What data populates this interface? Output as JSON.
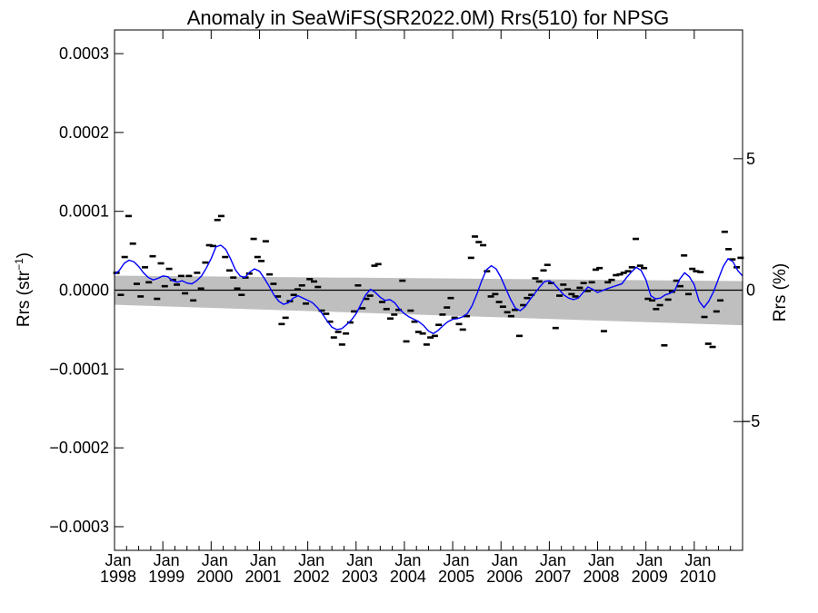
{
  "chart_data": {
    "type": "scatter",
    "title": "Anomaly in SeaWiFS(SR2022.0M) Rrs(510) for NPSG",
    "ylabel": "Rrs (str",
    "ylabel_sup": "−1",
    "ylabel_close": ")",
    "y2label": "Rrs (%)",
    "xlim": [
      1998.0,
      2011.0
    ],
    "ylim": [
      -0.00033,
      0.00033
    ],
    "y2lim": [
      -9.9,
      9.9
    ],
    "y_ticks": [
      {
        "value": 0.0003,
        "label": "0.0003"
      },
      {
        "value": 0.0002,
        "label": "0.0002"
      },
      {
        "value": 0.0001,
        "label": "0.0001"
      },
      {
        "value": 0.0,
        "label": "0.0000"
      },
      {
        "value": -0.0001,
        "label": "−0.0001"
      },
      {
        "value": -0.0002,
        "label": "−0.0002"
      },
      {
        "value": -0.0003,
        "label": "−0.0003"
      }
    ],
    "y2_ticks": [
      {
        "value": 5,
        "label": "5"
      },
      {
        "value": 0,
        "label": "0"
      },
      {
        "value": -5,
        "label": "−5"
      }
    ],
    "x_ticks": [
      {
        "value": 1998,
        "month": "Jan",
        "year": "1998"
      },
      {
        "value": 1999,
        "month": "Jan",
        "year": "1999"
      },
      {
        "value": 2000,
        "month": "Jan",
        "year": "2000"
      },
      {
        "value": 2001,
        "month": "Jan",
        "year": "2001"
      },
      {
        "value": 2002,
        "month": "Jan",
        "year": "2002"
      },
      {
        "value": 2003,
        "month": "Jan",
        "year": "2003"
      },
      {
        "value": 2004,
        "month": "Jan",
        "year": "2004"
      },
      {
        "value": 2005,
        "month": "Jan",
        "year": "2005"
      },
      {
        "value": 2006,
        "month": "Jan",
        "year": "2006"
      },
      {
        "value": 2007,
        "month": "Jan",
        "year": "2007"
      },
      {
        "value": 2008,
        "month": "Jan",
        "year": "2008"
      },
      {
        "value": 2009,
        "month": "Jan",
        "year": "2009"
      },
      {
        "value": 2010,
        "month": "Jan",
        "year": "2010"
      }
    ],
    "grid": false,
    "zero_line": true,
    "colors": {
      "points": "#000000",
      "smooth_line": "#0000ff",
      "band": "#bfbfbf",
      "zero_line": "#000000"
    },
    "band": {
      "x": [
        1998.0,
        2011.0
      ],
      "upper": [
        1.85e-05,
        1.15e-05
      ],
      "lower": [
        -1.85e-05,
        -4.45e-05
      ]
    },
    "monthly_points": {
      "x": [
        1998.04,
        1998.13,
        1998.21,
        1998.29,
        1998.38,
        1998.46,
        1998.54,
        1998.63,
        1998.71,
        1998.79,
        1998.88,
        1998.96,
        1999.04,
        1999.13,
        1999.21,
        1999.29,
        1999.38,
        1999.46,
        1999.54,
        1999.63,
        1999.71,
        1999.79,
        1999.88,
        1999.96,
        2000.04,
        2000.13,
        2000.21,
        2000.29,
        2000.38,
        2000.46,
        2000.54,
        2000.63,
        2000.71,
        2000.79,
        2000.88,
        2000.96,
        2001.04,
        2001.13,
        2001.21,
        2001.29,
        2001.38,
        2001.46,
        2001.54,
        2001.63,
        2001.71,
        2001.79,
        2001.88,
        2001.96,
        2002.04,
        2002.13,
        2002.21,
        2002.29,
        2002.38,
        2002.46,
        2002.54,
        2002.63,
        2002.71,
        2002.79,
        2002.88,
        2002.96,
        2003.04,
        2003.13,
        2003.21,
        2003.29,
        2003.38,
        2003.46,
        2003.54,
        2003.63,
        2003.71,
        2003.79,
        2003.88,
        2003.96,
        2004.04,
        2004.13,
        2004.21,
        2004.29,
        2004.38,
        2004.46,
        2004.54,
        2004.63,
        2004.71,
        2004.79,
        2004.88,
        2004.96,
        2005.04,
        2005.13,
        2005.21,
        2005.29,
        2005.38,
        2005.46,
        2005.54,
        2005.63,
        2005.71,
        2005.79,
        2005.88,
        2005.96,
        2006.04,
        2006.13,
        2006.21,
        2006.29,
        2006.38,
        2006.46,
        2006.54,
        2006.63,
        2006.71,
        2006.79,
        2006.88,
        2006.96,
        2007.04,
        2007.13,
        2007.21,
        2007.29,
        2007.38,
        2007.46,
        2007.54,
        2007.63,
        2007.71,
        2007.79,
        2007.88,
        2007.96,
        2008.04,
        2008.13,
        2008.21,
        2008.29,
        2008.38,
        2008.46,
        2008.54,
        2008.63,
        2008.71,
        2008.79,
        2008.88,
        2008.96,
        2009.04,
        2009.13,
        2009.21,
        2009.29,
        2009.38,
        2009.46,
        2009.54,
        2009.63,
        2009.71,
        2009.79,
        2009.88,
        2009.96,
        2010.04,
        2010.13,
        2010.21,
        2010.29,
        2010.38,
        2010.46,
        2010.54,
        2010.63,
        2010.71,
        2010.79,
        2010.88,
        2010.96
      ],
      "y": [
        2.2e-05,
        -6e-06,
        4.2e-05,
        9.4e-05,
        5.9e-05,
        8e-06,
        -8e-06,
        2.9e-05,
        1e-05,
        4.3e-05,
        -1.1e-05,
        3.4e-05,
        5e-06,
        2.7e-05,
        1.3e-05,
        7e-06,
        1.8e-05,
        -4e-06,
        1.8e-05,
        -1.3e-05,
        2.2e-05,
        2e-06,
        3.5e-05,
        5.7e-05,
        5.6e-05,
        8.9e-05,
        9.4e-05,
        4.2e-05,
        2.5e-05,
        1.6e-05,
        2e-06,
        -6e-06,
        1.6e-05,
        2.1e-05,
        6.5e-05,
        4.2e-05,
        3.7e-05,
        6.2e-05,
        2e-05,
        8e-06,
        -8e-06,
        -4.3e-05,
        -3.5e-05,
        -1.4e-05,
        -6e-06,
        1e-06,
        6e-06,
        -1.7e-05,
        1.4e-05,
        1.1e-05,
        4e-06,
        -2.6e-05,
        -3e-05,
        -4e-05,
        -6e-05,
        -5.3e-05,
        -6.9e-05,
        -5.5e-05,
        -4.1e-05,
        -2.7e-05,
        6e-06,
        -2.3e-05,
        -1.1e-05,
        -7e-06,
        3.1e-05,
        3.3e-05,
        -1.5e-05,
        -2.4e-05,
        -3.6e-05,
        -3.1e-05,
        -2.5e-05,
        1.2e-05,
        -6.5e-05,
        -2.6e-05,
        -4e-05,
        -5.3e-05,
        -5.5e-05,
        -6.9e-05,
        -6e-05,
        -5.8e-05,
        -4.4e-05,
        -3.1e-05,
        -2.2e-05,
        -1e-05,
        -3.5e-05,
        -4.3e-05,
        -5e-05,
        -3.3e-05,
        4.1e-05,
        6.8e-05,
        6.1e-05,
        5.7e-05,
        2.4e-05,
        -8e-06,
        -5e-06,
        -1.5e-05,
        -2.1e-05,
        -2.8e-05,
        -3.3e-05,
        -2.5e-05,
        -5.8e-05,
        -1.9e-05,
        -1e-05,
        -6e-06,
        1.5e-05,
        1.1e-05,
        2.5e-05,
        3.2e-05,
        9e-06,
        -4.8e-05,
        -7e-06,
        7e-06,
        1e-06,
        -5e-06,
        -8e-06,
        3e-06,
        9e-06,
        -1e-06,
        1e-05,
        2.6e-05,
        2.8e-05,
        -5.2e-05,
        1e-05,
        1.3e-05,
        1.9e-05,
        2e-05,
        2.2e-05,
        2.4e-05,
        2.9e-05,
        6.5e-05,
        3.1e-05,
        2.8e-05,
        -1.1e-05,
        -1.3e-05,
        -2.4e-05,
        -1.9e-05,
        -7e-05,
        -1.2e-05,
        -2e-06,
        1.2e-05,
        5e-06,
        4.4e-05,
        -5e-06,
        2.7e-05,
        2.4e-05,
        2.3e-05,
        -3.4e-05,
        -6.8e-05,
        -7.2e-05,
        -2.7e-05,
        -1.3e-05,
        7.4e-05,
        5.2e-05,
        3.9e-05,
        2.9e-05,
        4.1e-05
      ]
    },
    "smooth_line": {
      "x": [
        1998.0,
        1998.1,
        1998.2,
        1998.3,
        1998.4,
        1998.5,
        1998.6,
        1998.7,
        1998.8,
        1998.9,
        1999.0,
        1999.1,
        1999.2,
        1999.3,
        1999.4,
        1999.5,
        1999.6,
        1999.7,
        1999.8,
        1999.9,
        2000.0,
        2000.1,
        2000.2,
        2000.3,
        2000.4,
        2000.5,
        2000.6,
        2000.7,
        2000.8,
        2000.9,
        2001.0,
        2001.1,
        2001.2,
        2001.3,
        2001.4,
        2001.5,
        2001.6,
        2001.7,
        2001.8,
        2001.9,
        2002.0,
        2002.1,
        2002.2,
        2002.3,
        2002.4,
        2002.5,
        2002.6,
        2002.7,
        2002.8,
        2002.9,
        2003.0,
        2003.1,
        2003.2,
        2003.3,
        2003.4,
        2003.5,
        2003.6,
        2003.7,
        2003.8,
        2003.9,
        2004.0,
        2004.1,
        2004.2,
        2004.3,
        2004.4,
        2004.5,
        2004.6,
        2004.7,
        2004.8,
        2004.9,
        2005.0,
        2005.1,
        2005.2,
        2005.3,
        2005.4,
        2005.5,
        2005.6,
        2005.7,
        2005.8,
        2005.9,
        2006.0,
        2006.1,
        2006.2,
        2006.3,
        2006.4,
        2006.5,
        2006.6,
        2006.7,
        2006.8,
        2006.9,
        2007.0,
        2007.1,
        2007.2,
        2007.3,
        2007.4,
        2007.5,
        2007.6,
        2007.7,
        2007.8,
        2007.9,
        2008.0,
        2008.2,
        2008.4,
        2008.5,
        2008.6,
        2008.7,
        2008.8,
        2008.9,
        2009.0,
        2009.1,
        2009.2,
        2009.3,
        2009.4,
        2009.5,
        2009.6,
        2009.7,
        2009.8,
        2009.9,
        2010.0,
        2010.1,
        2010.2,
        2010.3,
        2010.4,
        2010.5,
        2010.6,
        2010.7,
        2010.8,
        2010.9,
        2011.0
      ],
      "y": [
        2e-05,
        2.5e-05,
        3.4e-05,
        3.8e-05,
        3.6e-05,
        3e-05,
        2.2e-05,
        1.6e-05,
        1.3e-05,
        1.5e-05,
        1.8e-05,
        1.7e-05,
        1.2e-05,
        1e-05,
        1.2e-05,
        9e-06,
        8e-06,
        1.2e-05,
        1.8e-05,
        2.8e-05,
        4e-05,
        5.5e-05,
        5.7e-05,
        5.2e-05,
        4e-05,
        2.6e-05,
        1.8e-05,
        1.6e-05,
        2.3e-05,
        2.7e-05,
        2.4e-05,
        1.5e-05,
        5e-06,
        -6e-06,
        -1.4e-05,
        -1.8e-05,
        -1.6e-05,
        -1e-05,
        -7e-06,
        -1e-05,
        -1.3e-05,
        -1.6e-05,
        -2.2e-05,
        -3e-05,
        -3.9e-05,
        -4.7e-05,
        -5e-05,
        -4.9e-05,
        -4.4e-05,
        -3.8e-05,
        -3e-05,
        -1.8e-05,
        -6e-06,
        1e-06,
        -3e-06,
        -9e-06,
        -1.3e-05,
        -1.2e-05,
        -1.6e-05,
        -2.4e-05,
        -3e-05,
        -3.4e-05,
        -3.7e-05,
        -4e-05,
        -4.5e-05,
        -5.2e-05,
        -5.5e-05,
        -5.1e-05,
        -4.5e-05,
        -4e-05,
        -3.7e-05,
        -3.6e-05,
        -3.4e-05,
        -3e-05,
        -2e-05,
        -5e-06,
        1.2e-05,
        2.6e-05,
        3.1e-05,
        2.7e-05,
        1.6e-05,
        2e-06,
        -1.2e-05,
        -2.3e-05,
        -2.6e-05,
        -2.1e-05,
        -1.2e-05,
        -4e-06,
        4e-06,
        1.1e-05,
        1.2e-05,
        8e-06,
        1e-06,
        -6e-06,
        -1e-05,
        -1.2e-05,
        -1e-05,
        -3e-06,
        4e-06,
        1e-06,
        -3e-06,
        2e-06,
        6e-06,
        8e-06,
        1.6e-05,
        2.3e-05,
        2.9e-05,
        2.5e-05,
        1.3e-05,
        -7e-06,
        -1.1e-05,
        -1e-05,
        -6e-06,
        -4e-06,
        0.0,
        1.4e-05,
        2.2e-05,
        1.7e-05,
        7e-06,
        -1.4e-05,
        -2.2e-05,
        -1.4e-05,
        -2e-06,
        1.4e-05,
        3e-05,
        4e-05,
        3.6e-05,
        2.5e-05,
        1.8e-05
      ]
    }
  }
}
